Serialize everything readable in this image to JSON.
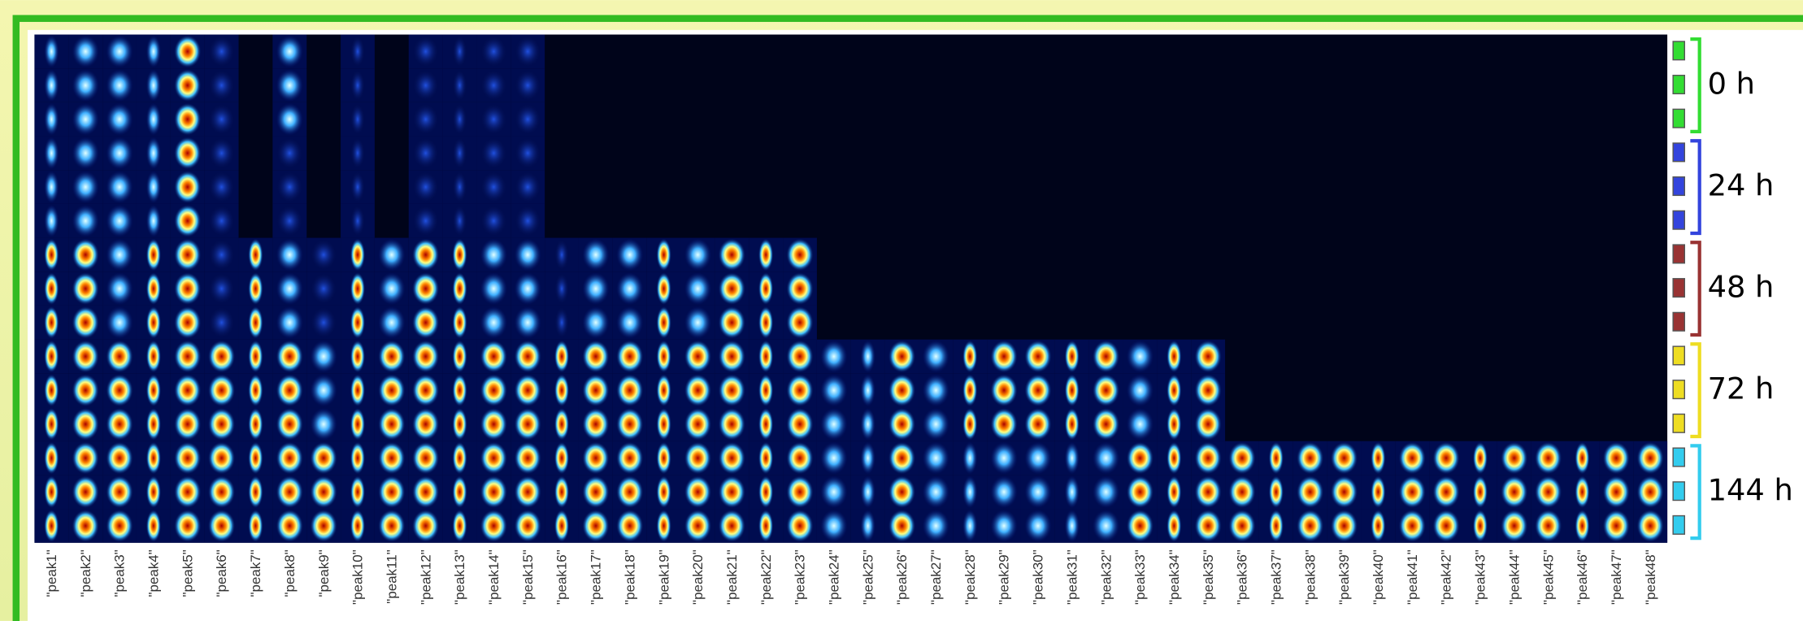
{
  "peaks": [
    "\"peak1\"",
    "\"peak2\"",
    "\"peak3\"",
    "\"peak4\"",
    "\"peak5\"",
    "\"peak6\"",
    "\"peak7\"",
    "\"peak8\"",
    "\"peak9\"",
    "\"peak10\"",
    "\"peak11\"",
    "\"peak12\"",
    "\"peak13\"",
    "\"peak14\"",
    "\"peak15\"",
    "\"peak16\"",
    "\"peak17\"",
    "\"peak18\"",
    "\"peak19\"",
    "\"peak20\"",
    "\"peak21\"",
    "\"peak22\"",
    "\"peak23\"",
    "\"peak24\"",
    "\"peak25\"",
    "\"peak26\"",
    "\"peak27\"",
    "\"peak28\"",
    "\"peak29\"",
    "\"peak30\"",
    "\"peak31\"",
    "\"peak32\"",
    "\"peak33\"",
    "\"peak34\"",
    "\"peak35\"",
    "\"peak36\"",
    "\"peak37\"",
    "\"peak38\"",
    "\"peak39\"",
    "\"peak40\"",
    "\"peak41\"",
    "\"peak42\"",
    "\"peak43\"",
    "\"peak44\"",
    "\"peak45\"",
    "\"peak46\"",
    "\"peak47\"",
    "\"peak48\""
  ],
  "groups": [
    {
      "label": "0 h",
      "color": "#33dd33"
    },
    {
      "label": "24 h",
      "color": "#3344dd"
    },
    {
      "label": "48 h",
      "color": "#993333"
    },
    {
      "label": "72 h",
      "color": "#eedd22"
    },
    {
      "label": "144 h",
      "color": "#33ccee"
    }
  ]
}
